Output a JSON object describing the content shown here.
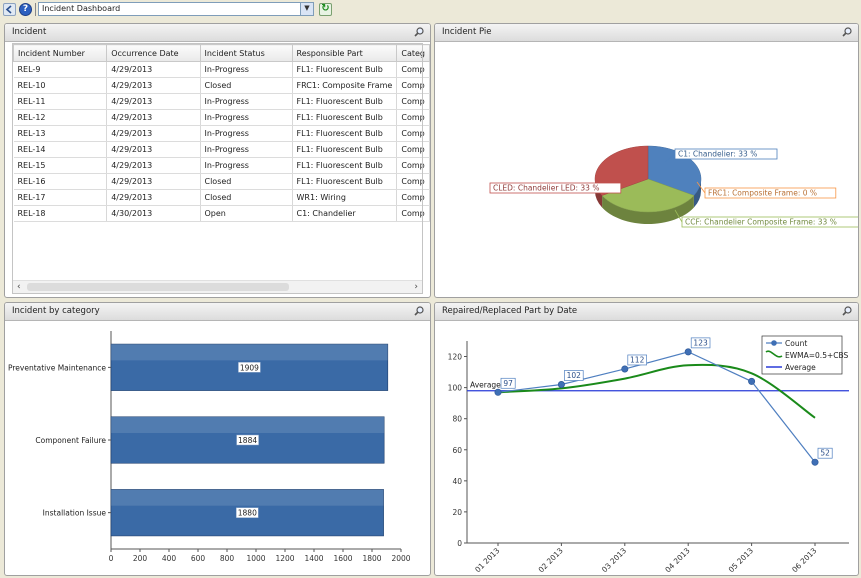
{
  "toolbar": {
    "dashboard_select": "Incident Dashboard",
    "help_glyph": "?"
  },
  "incident_panel": {
    "title": "Incident",
    "columns": [
      "Incident Number",
      "Occurrence Date",
      "Incident Status",
      "Responsible Part",
      "Categ"
    ],
    "rows": [
      [
        "REL-9",
        "4/29/2013",
        "In-Progress",
        "FL1: Fluorescent Bulb",
        "Comp"
      ],
      [
        "REL-10",
        "4/29/2013",
        "Closed",
        "FRC1: Composite Frame",
        "Comp"
      ],
      [
        "REL-11",
        "4/29/2013",
        "In-Progress",
        "FL1: Fluorescent Bulb",
        "Comp"
      ],
      [
        "REL-12",
        "4/29/2013",
        "In-Progress",
        "FL1: Fluorescent Bulb",
        "Comp"
      ],
      [
        "REL-13",
        "4/29/2013",
        "In-Progress",
        "FL1: Fluorescent Bulb",
        "Comp"
      ],
      [
        "REL-14",
        "4/29/2013",
        "In-Progress",
        "FL1: Fluorescent Bulb",
        "Comp"
      ],
      [
        "REL-15",
        "4/29/2013",
        "In-Progress",
        "FL1: Fluorescent Bulb",
        "Comp"
      ],
      [
        "REL-16",
        "4/29/2013",
        "Closed",
        "FL1: Fluorescent Bulb",
        "Comp"
      ],
      [
        "REL-17",
        "4/29/2013",
        "Closed",
        "WR1: Wiring",
        "Comp"
      ],
      [
        "REL-18",
        "4/30/2013",
        "Open",
        "C1: Chandelier",
        "Comp"
      ]
    ]
  },
  "pie_panel": {
    "title": "Incident Pie",
    "chart_data": {
      "type": "pie",
      "slices": [
        {
          "label": "C1: Chandelier: 33 %",
          "value": 33,
          "color": "#4f81bd"
        },
        {
          "label": "FRC1: Composite Frame: 0 %",
          "value": 0,
          "color": "#f79646"
        },
        {
          "label": "CCF: Chandelier Composite Frame: 33 %",
          "value": 33,
          "color": "#9bbb59"
        },
        {
          "label": "CLED: Chandelier LED: 33 %",
          "value": 33,
          "color": "#c0504d"
        }
      ]
    }
  },
  "category_panel": {
    "title": "Incident by category",
    "chart_data": {
      "type": "bar",
      "orientation": "horizontal",
      "categories": [
        "Preventative Maintenance",
        "Component Failure",
        "Installation Issue"
      ],
      "values": [
        1909,
        1884,
        1880
      ],
      "xlim": [
        0,
        2000
      ],
      "xticks": [
        "0",
        "200",
        "400",
        "600",
        "800",
        "1000",
        "1200",
        "1400",
        "1600",
        "1800",
        "2000"
      ],
      "bar_color": "#3a6aa6"
    }
  },
  "date_panel": {
    "title": "Repaired/Replaced Part by Date",
    "chart_data": {
      "type": "line",
      "categories": [
        "01 2013",
        "02 2013",
        "03 2013",
        "04 2013",
        "05 2013",
        "06 2013"
      ],
      "ylim": [
        0,
        130
      ],
      "yticks": [
        "0",
        "20",
        "40",
        "60",
        "80",
        "100",
        "120"
      ],
      "series": [
        {
          "name": "Count",
          "values": [
            97,
            102,
            112,
            123,
            104,
            52
          ],
          "labels": [
            "97",
            "102",
            "112",
            "123",
            "",
            "52"
          ],
          "color": "#4f7fc0"
        },
        {
          "name": "EWMA=0.5+CBS",
          "values": [
            97,
            99.5,
            105.8,
            114.4,
            109.2,
            80.6
          ],
          "color": "#1a8a1a"
        },
        {
          "name": "Average",
          "values": [
            98,
            98,
            98,
            98,
            98,
            98
          ],
          "color": "#2a3cd8"
        }
      ],
      "average_label": "Average"
    }
  }
}
